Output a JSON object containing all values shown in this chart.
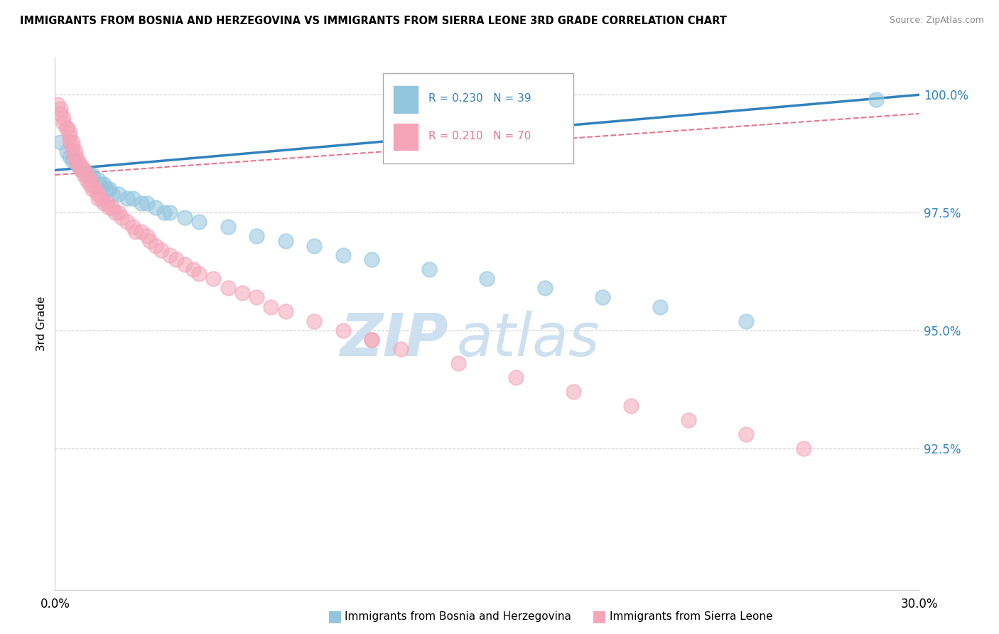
{
  "title": "IMMIGRANTS FROM BOSNIA AND HERZEGOVINA VS IMMIGRANTS FROM SIERRA LEONE 3RD GRADE CORRELATION CHART",
  "source": "Source: ZipAtlas.com",
  "legend_blue_r": "0.230",
  "legend_blue_n": "39",
  "legend_pink_r": "0.210",
  "legend_pink_n": "70",
  "legend_blue_label": "Immigrants from Bosnia and Herzegovina",
  "legend_pink_label": "Immigrants from Sierra Leone",
  "x_min": 0.0,
  "x_max": 0.3,
  "y_min": 0.895,
  "y_max": 1.008,
  "yticks": [
    1.0,
    0.975,
    0.95,
    0.925
  ],
  "ytick_labels": [
    "100.0%",
    "97.5%",
    "95.0%",
    "92.5%"
  ],
  "blue_scatter_color": "#92c5de",
  "pink_scatter_color": "#f4a5b8",
  "blue_line_color": "#3182bd",
  "pink_line_color": "#e8748a",
  "grid_color": "#cccccc",
  "watermark_color": "#cce0f0",
  "blue_points_x": [
    0.002,
    0.004,
    0.005,
    0.006,
    0.007,
    0.008,
    0.009,
    0.01,
    0.012,
    0.013,
    0.015,
    0.016,
    0.017,
    0.018,
    0.019,
    0.02,
    0.022,
    0.025,
    0.027,
    0.03,
    0.032,
    0.035,
    0.038,
    0.04,
    0.045,
    0.05,
    0.06,
    0.07,
    0.08,
    0.09,
    0.1,
    0.11,
    0.13,
    0.15,
    0.17,
    0.19,
    0.21,
    0.24,
    0.285
  ],
  "blue_points_y": [
    0.99,
    0.988,
    0.987,
    0.986,
    0.986,
    0.985,
    0.984,
    0.984,
    0.983,
    0.983,
    0.982,
    0.981,
    0.981,
    0.98,
    0.98,
    0.979,
    0.979,
    0.978,
    0.978,
    0.977,
    0.977,
    0.976,
    0.975,
    0.975,
    0.974,
    0.973,
    0.972,
    0.97,
    0.969,
    0.968,
    0.966,
    0.965,
    0.963,
    0.961,
    0.959,
    0.957,
    0.955,
    0.952,
    0.999
  ],
  "pink_points_x": [
    0.001,
    0.002,
    0.002,
    0.003,
    0.003,
    0.004,
    0.004,
    0.005,
    0.005,
    0.005,
    0.006,
    0.006,
    0.006,
    0.007,
    0.007,
    0.007,
    0.008,
    0.008,
    0.009,
    0.009,
    0.01,
    0.01,
    0.011,
    0.011,
    0.012,
    0.012,
    0.013,
    0.013,
    0.014,
    0.015,
    0.015,
    0.016,
    0.017,
    0.018,
    0.019,
    0.02,
    0.021,
    0.022,
    0.023,
    0.025,
    0.027,
    0.028,
    0.03,
    0.032,
    0.033,
    0.035,
    0.037,
    0.04,
    0.042,
    0.045,
    0.048,
    0.05,
    0.055,
    0.06,
    0.065,
    0.07,
    0.075,
    0.08,
    0.09,
    0.1,
    0.11,
    0.12,
    0.14,
    0.16,
    0.18,
    0.2,
    0.22,
    0.24,
    0.26,
    0.11
  ],
  "pink_points_y": [
    0.998,
    0.997,
    0.996,
    0.995,
    0.994,
    0.993,
    0.993,
    0.992,
    0.991,
    0.99,
    0.99,
    0.989,
    0.988,
    0.988,
    0.987,
    0.986,
    0.986,
    0.985,
    0.985,
    0.984,
    0.984,
    0.983,
    0.983,
    0.982,
    0.982,
    0.981,
    0.981,
    0.98,
    0.98,
    0.979,
    0.978,
    0.978,
    0.977,
    0.977,
    0.976,
    0.976,
    0.975,
    0.975,
    0.974,
    0.973,
    0.972,
    0.971,
    0.971,
    0.97,
    0.969,
    0.968,
    0.967,
    0.966,
    0.965,
    0.964,
    0.963,
    0.962,
    0.961,
    0.959,
    0.958,
    0.957,
    0.955,
    0.954,
    0.952,
    0.95,
    0.948,
    0.946,
    0.943,
    0.94,
    0.937,
    0.934,
    0.931,
    0.928,
    0.925,
    0.948
  ],
  "blue_line_x": [
    0.0,
    0.3
  ],
  "blue_line_y": [
    0.984,
    1.0
  ],
  "pink_line_x": [
    0.0,
    0.3
  ],
  "pink_line_y": [
    0.983,
    0.996
  ]
}
